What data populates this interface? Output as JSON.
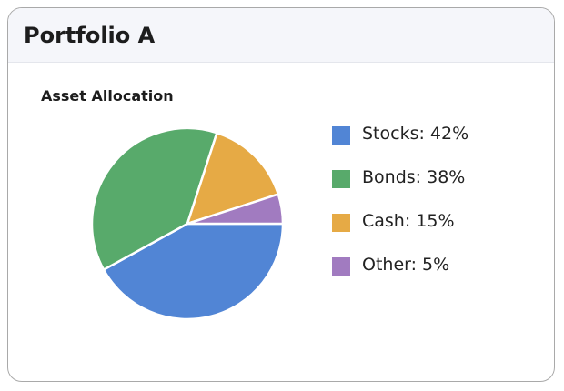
{
  "header": {
    "title": "Portfolio A"
  },
  "chart_data": {
    "type": "pie",
    "title": "Asset Allocation",
    "categories": [
      "Stocks",
      "Bonds",
      "Cash",
      "Other"
    ],
    "values": [
      42,
      38,
      15,
      5
    ],
    "colors": [
      "#5185d5",
      "#58aa6b",
      "#e6aa45",
      "#a17bc0"
    ],
    "legend_labels": [
      "Stocks: 42%",
      "Bonds: 38%",
      "Cash: 15%",
      "Other: 5%"
    ],
    "legend_position": "right"
  }
}
